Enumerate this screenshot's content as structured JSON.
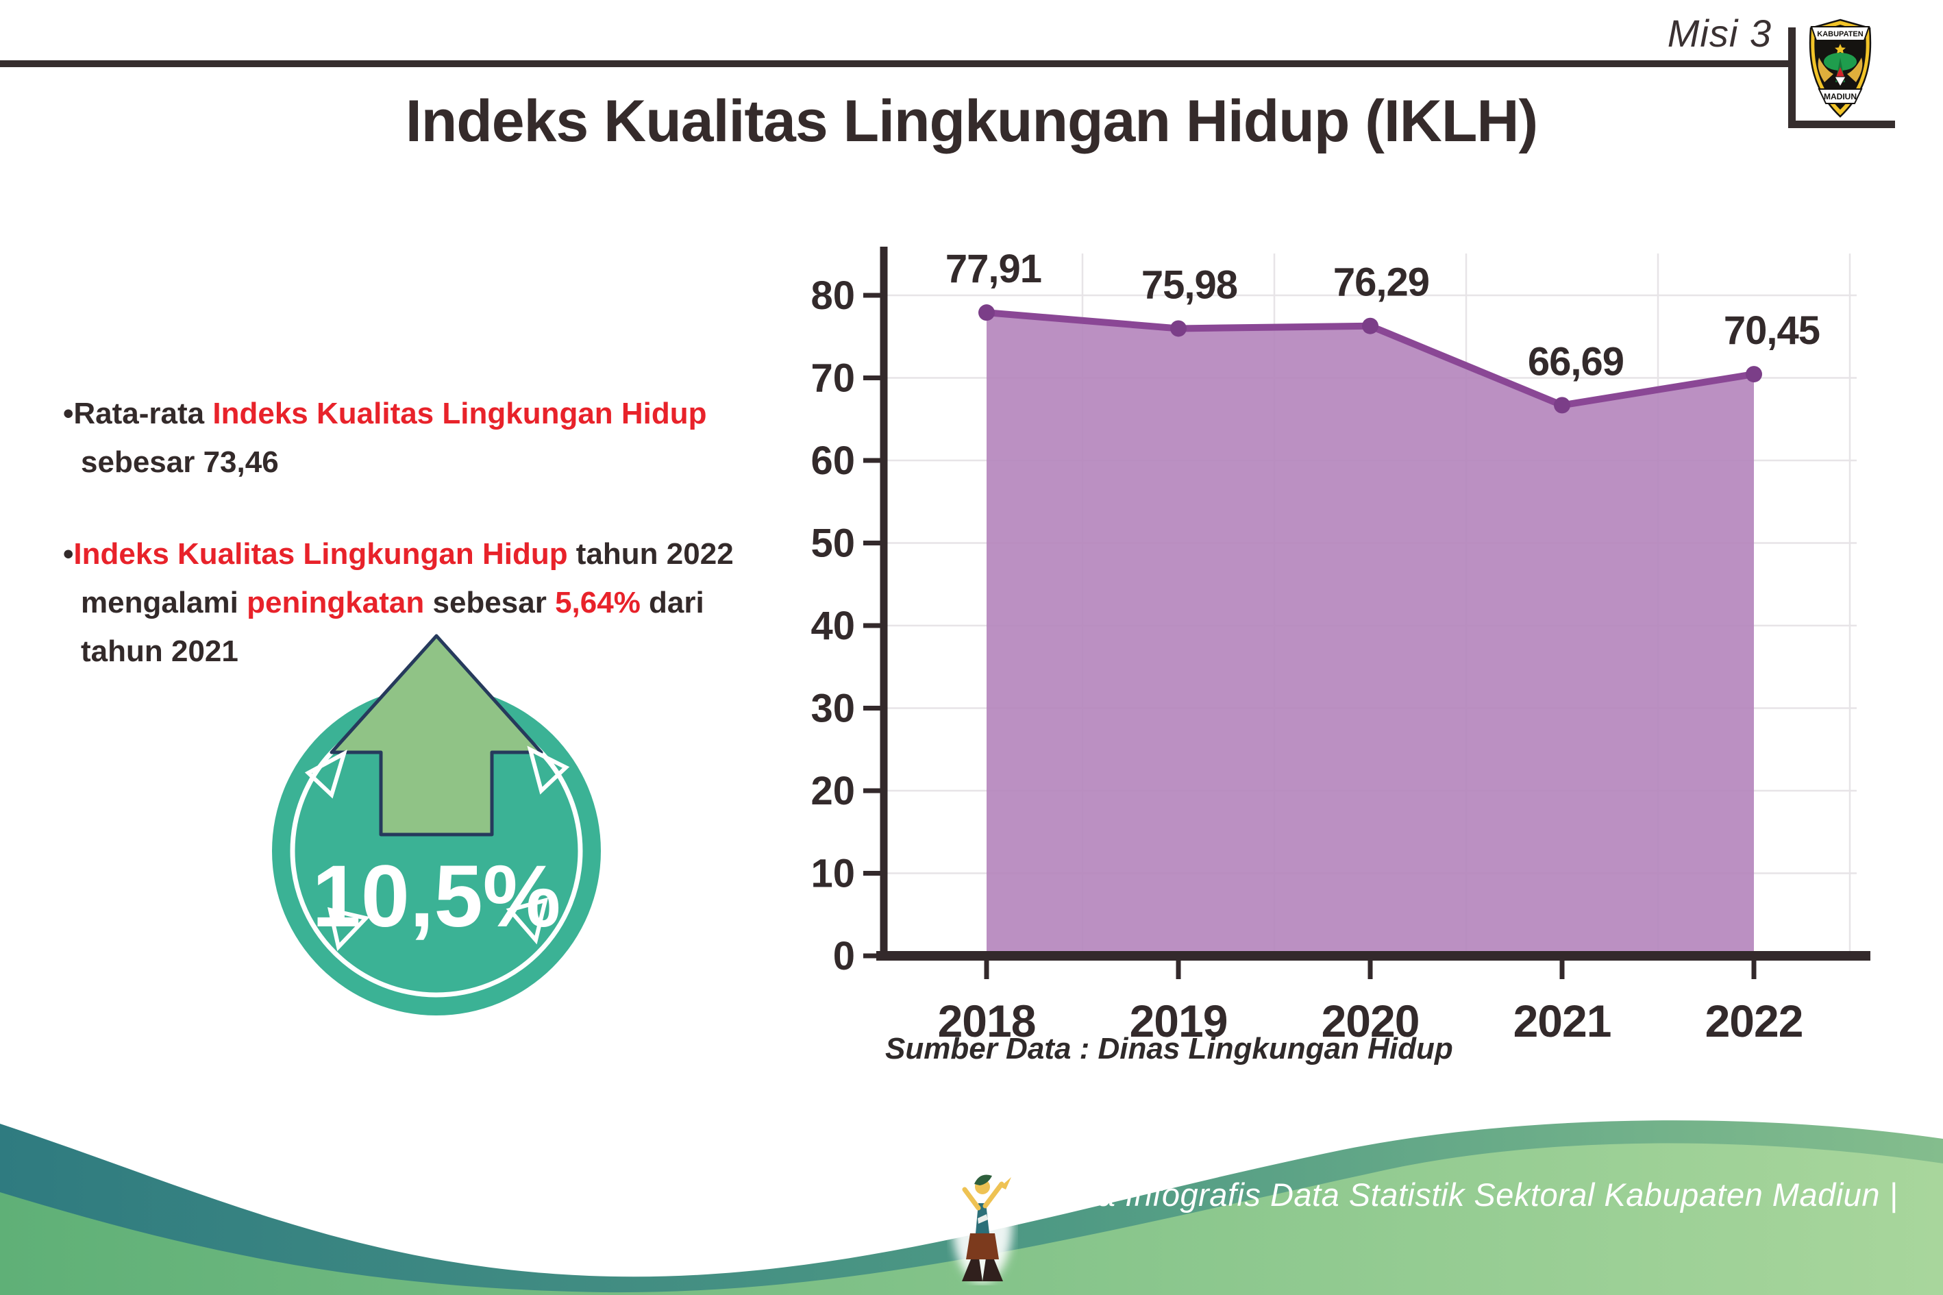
{
  "header": {
    "misi_label": "Misi 3",
    "logo": {
      "top_text": "KABUPATEN",
      "bottom_text": "MADIUN"
    }
  },
  "title": "Indeks Kualitas Lingkungan Hidup (IKLH)",
  "bullets": {
    "bullet1": {
      "segments": [
        {
          "text": "•Rata-rata ",
          "color": "dark"
        },
        {
          "text": "Indeks Kualitas Lingkungan Hidup",
          "color": "red"
        },
        {
          "br": true
        },
        {
          "text": "sebesar 73,46",
          "color": "dark"
        }
      ]
    },
    "bullet2": {
      "segments": [
        {
          "text": "•",
          "color": "dark"
        },
        {
          "text": "Indeks Kualitas Lingkungan Hidup",
          "color": "red"
        },
        {
          "text": " tahun 2022",
          "color": "dark"
        },
        {
          "br": true
        },
        {
          "text": "mengalami ",
          "color": "dark"
        },
        {
          "text": "peningkatan",
          "color": "red"
        },
        {
          "text": " sebesar ",
          "color": "dark"
        },
        {
          "text": "5,64%",
          "color": "red"
        },
        {
          "text": " dari",
          "color": "dark"
        },
        {
          "br": true
        },
        {
          "text": "tahun 2021",
          "color": "dark"
        }
      ]
    }
  },
  "badge": {
    "value": "10,5%",
    "circle_color": "#3bb295",
    "arrow_color": "#90c386",
    "outline_color": "#263a5c"
  },
  "chart_data": {
    "type": "area",
    "title": "",
    "categories": [
      "2018",
      "2019",
      "2020",
      "2021",
      "2022"
    ],
    "values": [
      77.91,
      75.98,
      76.29,
      66.69,
      70.45
    ],
    "value_labels": [
      "77,91",
      "75,98",
      "76,29",
      "66,69",
      "70,45"
    ],
    "xlabel": "",
    "ylabel": "",
    "ylim": [
      0,
      85
    ],
    "yticks": [
      0,
      10,
      20,
      30,
      40,
      50,
      60,
      70,
      80
    ],
    "grid": true,
    "legend": false,
    "area_fill": "#b587bd",
    "line_color": "#8a4795",
    "marker_color": "#7b3e88",
    "source_note": "Sumber Data : Dinas Lingkungan Hidup"
  },
  "footer": {
    "caption": "Media Infografis Data Statistik Sektoral Kabupaten Madiun |"
  }
}
